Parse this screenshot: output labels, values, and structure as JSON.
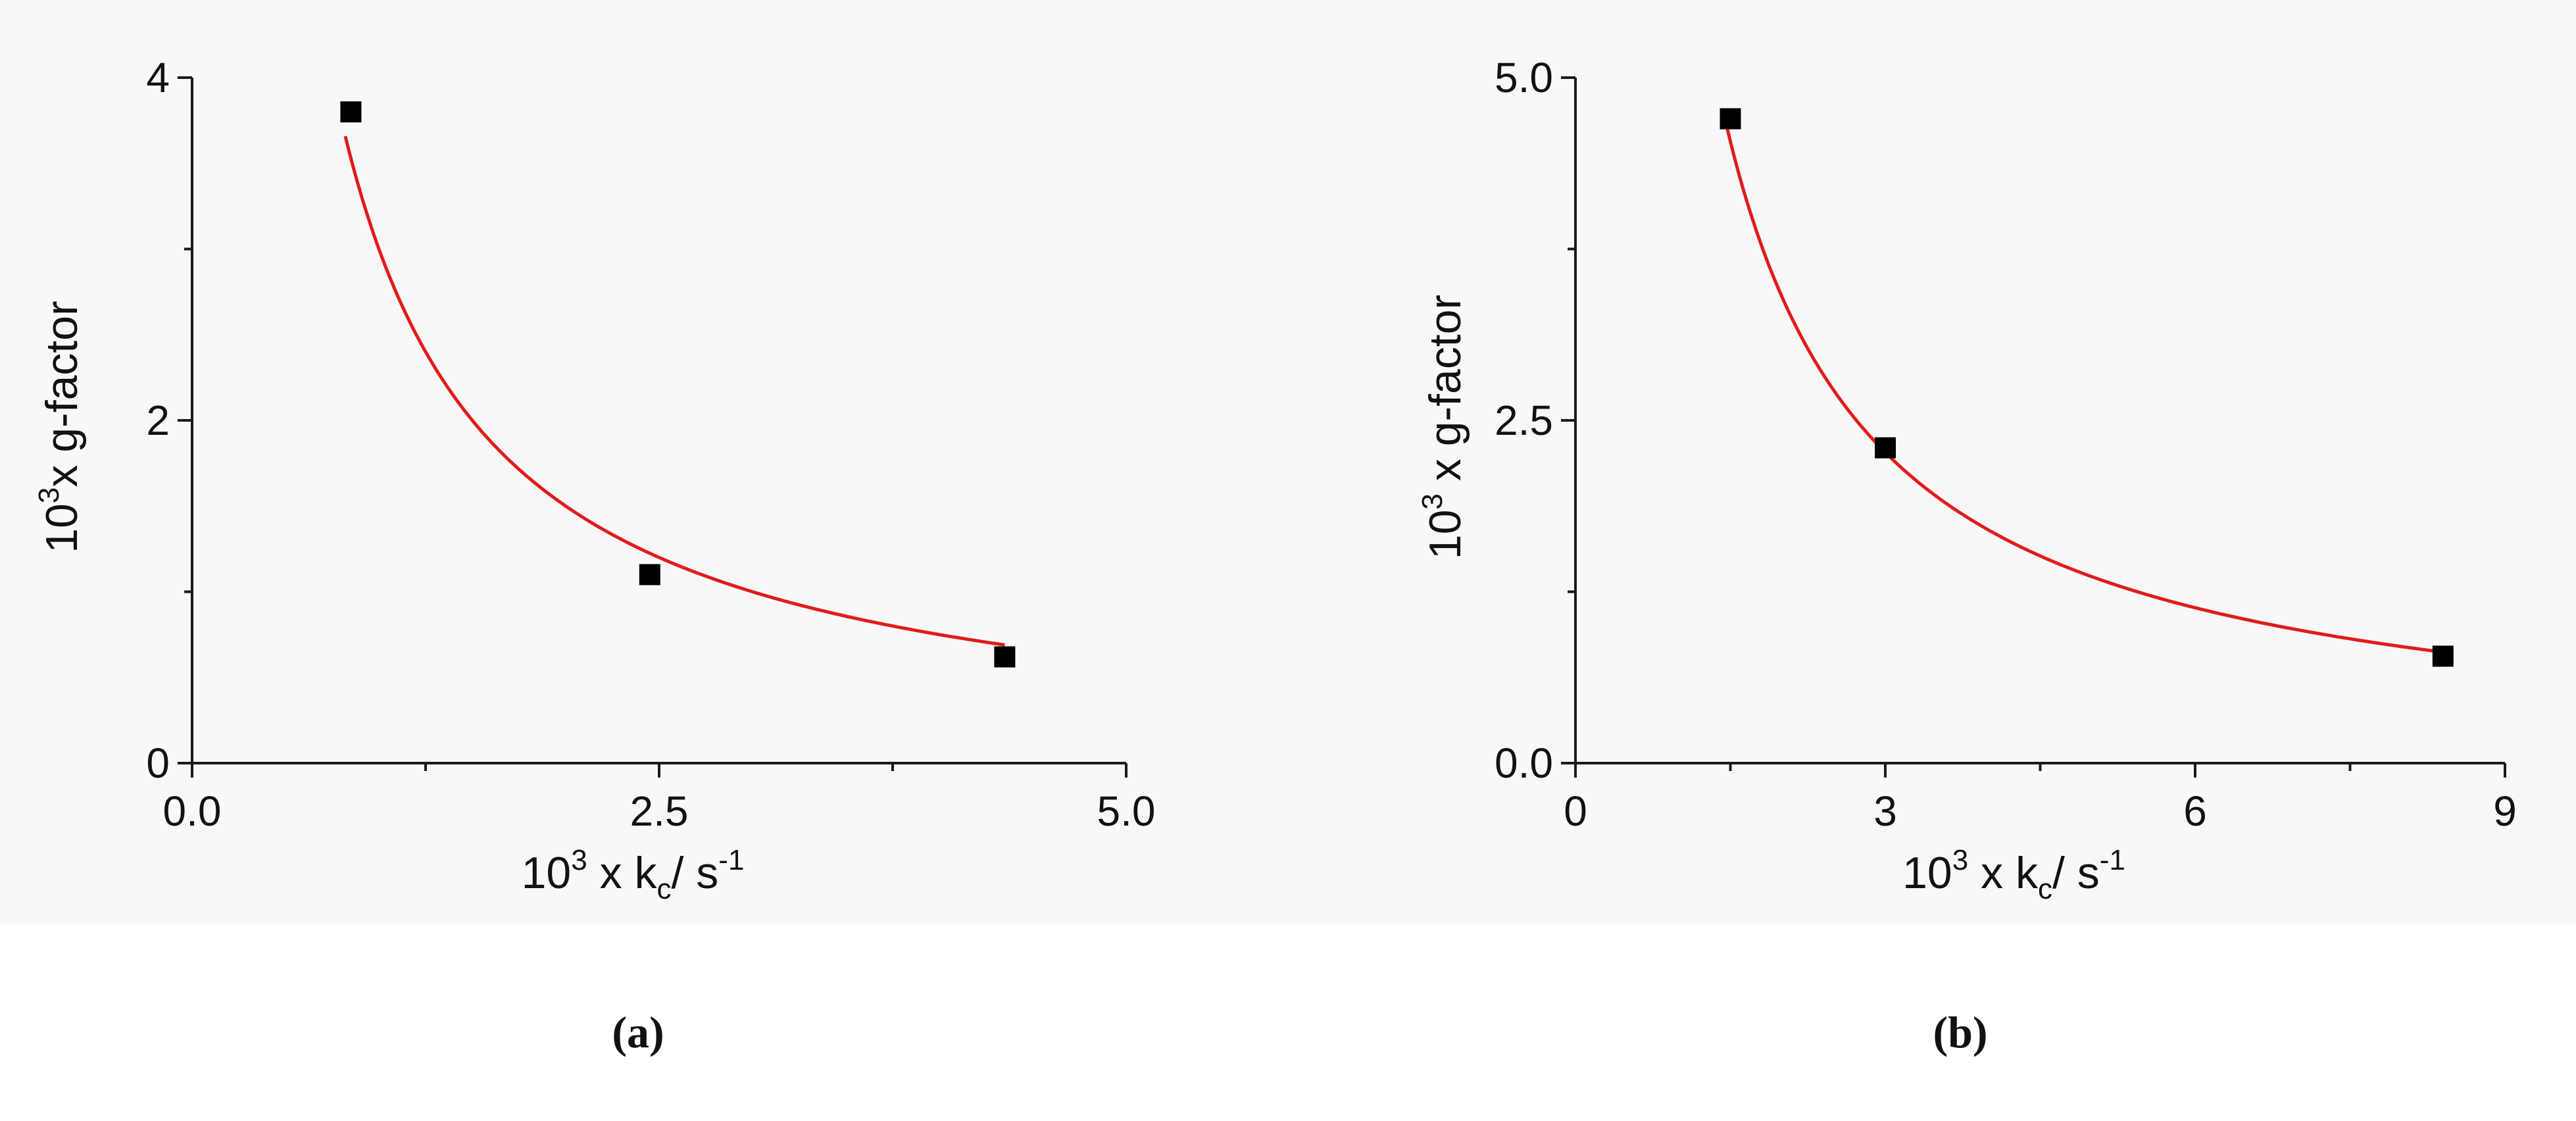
{
  "colors": {
    "axis": "#1a1a1a",
    "marker": "#000000",
    "fit_curve": "#e31b1b",
    "background": "#f8f8f8"
  },
  "captions": {
    "a": "(a)",
    "b": "(b)"
  },
  "chart_data": [
    {
      "type": "scatter",
      "panel": "a",
      "xlabel": {
        "prefix": "10",
        "exp": "3",
        "mid": " x k",
        "sub": "c",
        "unit": "/ s",
        "unit_exp": "-1"
      },
      "ylabel": {
        "prefix": "10",
        "exp": "3",
        "rest": "x g-factor"
      },
      "xlim": [
        0,
        5.0
      ],
      "ylim": [
        0,
        4
      ],
      "xticks": [
        {
          "value": 0,
          "label": "0.0"
        },
        {
          "value": 2.5,
          "label": "2.5"
        },
        {
          "value": 5.0,
          "label": "5.0"
        }
      ],
      "xminor": [
        1.25,
        3.75
      ],
      "yticks": [
        {
          "value": 0,
          "label": "0"
        },
        {
          "value": 2,
          "label": "2"
        },
        {
          "value": 4,
          "label": "4"
        }
      ],
      "yminor": [
        1,
        3
      ],
      "series": [
        {
          "kind": "points",
          "marker": "square",
          "x": [
            0.85,
            2.45,
            4.35
          ],
          "y": [
            3.8,
            1.1,
            0.62
          ]
        },
        {
          "kind": "fit",
          "model": "y = a / x",
          "a": 3.0,
          "x_range": [
            0.82,
            4.35
          ]
        }
      ]
    },
    {
      "type": "scatter",
      "panel": "b",
      "xlabel": {
        "prefix": "10",
        "exp": "3",
        "mid": " x k",
        "sub": "c",
        "unit": "/ s",
        "unit_exp": "-1"
      },
      "ylabel": {
        "prefix": "10",
        "exp": "3",
        "rest": " x g-factor"
      },
      "xlim": [
        0,
        9
      ],
      "ylim": [
        0,
        5.0
      ],
      "xticks": [
        {
          "value": 0,
          "label": "0"
        },
        {
          "value": 3,
          "label": "3"
        },
        {
          "value": 6,
          "label": "6"
        },
        {
          "value": 9,
          "label": "9"
        }
      ],
      "xminor": [
        1.5,
        4.5,
        7.5
      ],
      "yticks": [
        {
          "value": 0,
          "label": "0.0"
        },
        {
          "value": 2.5,
          "label": "2.5"
        },
        {
          "value": 5.0,
          "label": "5.0"
        }
      ],
      "yminor": [
        1.25,
        3.75
      ],
      "series": [
        {
          "kind": "points",
          "marker": "square",
          "x": [
            1.5,
            3.0,
            8.4
          ],
          "y": [
            4.7,
            2.3,
            0.78
          ]
        },
        {
          "kind": "fit",
          "model": "y = a / x",
          "a": 6.8,
          "x_range": [
            1.45,
            8.4
          ]
        }
      ]
    }
  ]
}
